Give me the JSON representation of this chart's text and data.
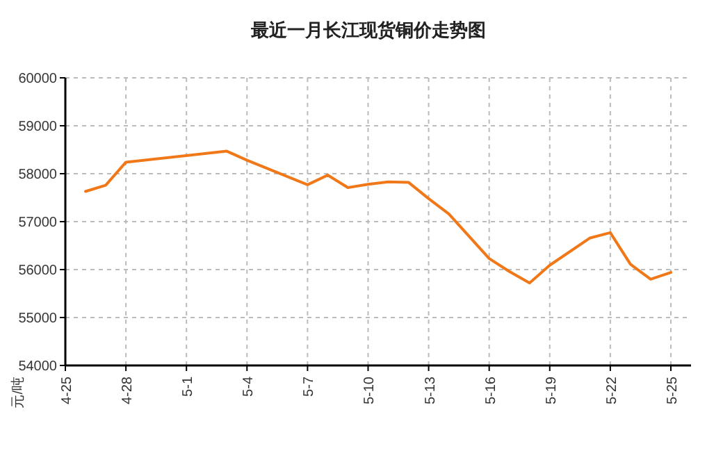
{
  "chart_data": {
    "type": "line",
    "title": "最近一月长江现货铜价走势图",
    "ylabel": "元/吨",
    "x": [
      "--04-26",
      "--04-27",
      "--04-28",
      "--05-03",
      "--05-04",
      "--05-07",
      "--05-08",
      "--05-09",
      "--05-10",
      "--05-11",
      "--05-12",
      "--05-13",
      "--05-14",
      "--05-16",
      "--05-17",
      "--05-18",
      "--05-19",
      "--05-21",
      "--05-22",
      "--05-23",
      "--05-24",
      "--05-25"
    ],
    "series": [
      {
        "color": "#f07818",
        "values": [
          57630,
          57760,
          58240,
          58470,
          58280,
          57770,
          57970,
          57710,
          57780,
          57830,
          57820,
          57480,
          57160,
          56230,
          55960,
          55720,
          56090,
          56660,
          56770,
          56110,
          55800,
          55940
        ]
      }
    ],
    "xlim": [
      "--04-25",
      "--05-26"
    ],
    "xticks": [
      {
        "value": "--04-25",
        "label": "4-25"
      },
      {
        "value": "--04-28",
        "label": "4-28"
      },
      {
        "value": "--05-01",
        "label": "5-1"
      },
      {
        "value": "--05-04",
        "label": "5-4"
      },
      {
        "value": "--05-07",
        "label": "5-7"
      },
      {
        "value": "--05-10",
        "label": "5-10"
      },
      {
        "value": "--05-13",
        "label": "5-13"
      },
      {
        "value": "--05-16",
        "label": "5-16"
      },
      {
        "value": "--05-19",
        "label": "5-19"
      },
      {
        "value": "--05-22",
        "label": "5-22"
      },
      {
        "value": "--05-25",
        "label": "5-25"
      }
    ],
    "ylim": [
      54000,
      60000
    ],
    "yticks": [
      54000,
      55000,
      56000,
      57000,
      58000,
      59000,
      60000
    ],
    "grid": true,
    "marker": "none",
    "line_style": "solid"
  }
}
